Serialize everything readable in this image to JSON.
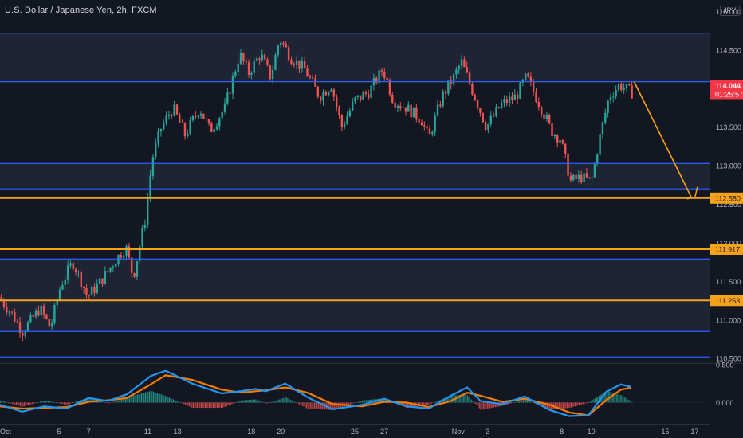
{
  "header": {
    "title": "U.S. Dollar / Japanese Yen, 2h, FXCM",
    "currency": "JPY"
  },
  "colors": {
    "background": "#131722",
    "band_fill": "#1e2434",
    "support_resistance_blue": "#2962ff",
    "key_level_orange": "#f7a21b",
    "candle_up": "#26a69a",
    "candle_down": "#ef5350",
    "macd_line": "#2196f3",
    "signal_line": "#f57c00",
    "axis_text": "#b2b5be",
    "current_price_bg": "#f23645"
  },
  "chart_data": [
    {
      "type": "candlestick",
      "title": "U.S. Dollar / Japanese Yen, 2h, FXCM",
      "xlabel": "",
      "ylabel": "",
      "x_tick_labels": [
        "Oct",
        "5",
        "7",
        "11",
        "13",
        "18",
        "20",
        "25",
        "27",
        "Nov",
        "3",
        "8",
        "10",
        "15",
        "17"
      ],
      "x_tick_days": [
        1,
        5,
        7,
        11,
        13,
        18,
        20,
        25,
        27,
        32,
        34,
        39,
        41,
        46,
        48
      ],
      "y_tick_labels": [
        "115.000",
        "114.500",
        "114.000",
        "113.500",
        "113.000",
        "112.500",
        "112.000",
        "111.500",
        "111.000",
        "110.500"
      ],
      "y_ticks": [
        115.0,
        114.5,
        114.0,
        113.5,
        113.0,
        112.5,
        112.0,
        111.5,
        111.0,
        110.5
      ],
      "ylim": [
        110.45,
        115.15
      ],
      "x_range_days": [
        1.0,
        49.0
      ],
      "grid": false,
      "price_path": [
        [
          1.0,
          111.3
        ],
        [
          2.0,
          111.05
        ],
        [
          2.6,
          110.85
        ],
        [
          3.8,
          111.15
        ],
        [
          4.5,
          110.9
        ],
        [
          5.2,
          111.45
        ],
        [
          6.0,
          111.75
        ],
        [
          6.5,
          111.55
        ],
        [
          7.0,
          111.3
        ],
        [
          7.9,
          111.5
        ],
        [
          8.8,
          111.75
        ],
        [
          9.6,
          111.95
        ],
        [
          10.1,
          111.55
        ],
        [
          10.9,
          112.3
        ],
        [
          11.4,
          113.1
        ],
        [
          12.0,
          113.5
        ],
        [
          12.8,
          113.75
        ],
        [
          13.6,
          113.4
        ],
        [
          14.6,
          113.75
        ],
        [
          15.3,
          113.45
        ],
        [
          16.3,
          113.75
        ],
        [
          17.3,
          114.45
        ],
        [
          17.9,
          114.2
        ],
        [
          18.7,
          114.45
        ],
        [
          19.4,
          114.15
        ],
        [
          20.0,
          114.65
        ],
        [
          20.8,
          114.4
        ],
        [
          21.7,
          114.25
        ],
        [
          22.7,
          113.9
        ],
        [
          23.5,
          114.05
        ],
        [
          24.2,
          113.5
        ],
        [
          25.1,
          113.85
        ],
        [
          26.0,
          113.95
        ],
        [
          27.0,
          114.25
        ],
        [
          27.7,
          113.85
        ],
        [
          28.6,
          113.75
        ],
        [
          29.6,
          113.6
        ],
        [
          30.1,
          113.35
        ],
        [
          31.0,
          113.9
        ],
        [
          31.8,
          114.15
        ],
        [
          32.3,
          114.35
        ],
        [
          33.0,
          114.0
        ],
        [
          34.0,
          113.5
        ],
        [
          35.0,
          113.8
        ],
        [
          36.0,
          113.9
        ],
        [
          36.7,
          114.15
        ],
        [
          37.6,
          113.8
        ],
        [
          38.4,
          113.45
        ],
        [
          39.0,
          113.35
        ],
        [
          39.7,
          112.8
        ],
        [
          40.4,
          112.85
        ],
        [
          41.1,
          112.8
        ],
        [
          41.7,
          113.4
        ],
        [
          42.3,
          113.9
        ],
        [
          43.0,
          114.05
        ],
        [
          43.8,
          113.95
        ]
      ],
      "levels": [
        {
          "price": 114.72,
          "kind": "resistance",
          "color": "blue"
        },
        {
          "price": 114.09,
          "kind": "resistance",
          "color": "blue"
        },
        {
          "price": 113.03,
          "kind": "support",
          "color": "blue"
        },
        {
          "price": 112.7,
          "kind": "support",
          "color": "blue"
        },
        {
          "price": 112.58,
          "kind": "target",
          "color": "orange",
          "label": "112.580"
        },
        {
          "price": 111.917,
          "kind": "key",
          "color": "orange",
          "label": "111.917"
        },
        {
          "price": 111.79,
          "kind": "support",
          "color": "blue"
        },
        {
          "price": 111.253,
          "kind": "key",
          "color": "orange",
          "label": "111.253"
        },
        {
          "price": 110.85,
          "kind": "support",
          "color": "blue"
        },
        {
          "price": 110.52,
          "kind": "support",
          "color": "blue"
        }
      ],
      "projection": {
        "from": {
          "day": 43.9,
          "price": 114.09
        },
        "to": {
          "day": 47.8,
          "price": 112.58
        }
      },
      "current_price": {
        "value": "114.044",
        "countdown": "01:25:57"
      }
    },
    {
      "type": "line",
      "title": "",
      "indicator": "oscillator",
      "y_tick_labels": [
        "0.500",
        "0.000"
      ],
      "y_ticks": [
        0.5,
        0.0
      ],
      "ylim": [
        -0.28,
        0.5
      ],
      "series": [
        {
          "role": "fast",
          "points": [
            [
              1.0,
              -0.03
            ],
            [
              2.5,
              -0.12
            ],
            [
              4.0,
              -0.05
            ],
            [
              5.5,
              -0.08
            ],
            [
              7.0,
              0.06
            ],
            [
              8.3,
              0.02
            ],
            [
              9.6,
              0.11
            ],
            [
              11.2,
              0.35
            ],
            [
              12.2,
              0.42
            ],
            [
              14.0,
              0.25
            ],
            [
              16.0,
              0.12
            ],
            [
              17.3,
              0.15
            ],
            [
              18.3,
              0.18
            ],
            [
              19.0,
              0.15
            ],
            [
              20.3,
              0.25
            ],
            [
              21.8,
              0.07
            ],
            [
              23.5,
              -0.09
            ],
            [
              25.5,
              -0.03
            ],
            [
              27.0,
              0.05
            ],
            [
              28.5,
              -0.05
            ],
            [
              30.0,
              -0.08
            ],
            [
              31.5,
              0.09
            ],
            [
              32.6,
              0.2
            ],
            [
              33.5,
              0.02
            ],
            [
              35.0,
              -0.02
            ],
            [
              36.5,
              0.08
            ],
            [
              38.2,
              -0.1
            ],
            [
              39.5,
              -0.18
            ],
            [
              40.8,
              -0.17
            ],
            [
              42.0,
              0.14
            ],
            [
              43.0,
              0.24
            ],
            [
              43.8,
              0.2
            ]
          ]
        },
        {
          "role": "slow",
          "points": [
            [
              1.0,
              -0.05
            ],
            [
              2.5,
              -0.08
            ],
            [
              4.0,
              -0.07
            ],
            [
              5.5,
              -0.06
            ],
            [
              7.0,
              0.01
            ],
            [
              8.3,
              0.03
            ],
            [
              9.6,
              0.06
            ],
            [
              11.2,
              0.24
            ],
            [
              12.2,
              0.36
            ],
            [
              14.0,
              0.3
            ],
            [
              16.0,
              0.17
            ],
            [
              17.3,
              0.13
            ],
            [
              18.3,
              0.15
            ],
            [
              19.0,
              0.16
            ],
            [
              20.3,
              0.2
            ],
            [
              21.8,
              0.13
            ],
            [
              23.5,
              -0.02
            ],
            [
              25.5,
              -0.05
            ],
            [
              27.0,
              0.01
            ],
            [
              28.5,
              0.0
            ],
            [
              30.0,
              -0.06
            ],
            [
              31.5,
              0.02
            ],
            [
              32.6,
              0.13
            ],
            [
              33.5,
              0.09
            ],
            [
              35.0,
              0.01
            ],
            [
              36.5,
              0.05
            ],
            [
              38.2,
              -0.03
            ],
            [
              39.5,
              -0.13
            ],
            [
              40.8,
              -0.17
            ],
            [
              42.0,
              0.03
            ],
            [
              43.0,
              0.17
            ],
            [
              43.8,
              0.2
            ]
          ]
        }
      ]
    }
  ]
}
